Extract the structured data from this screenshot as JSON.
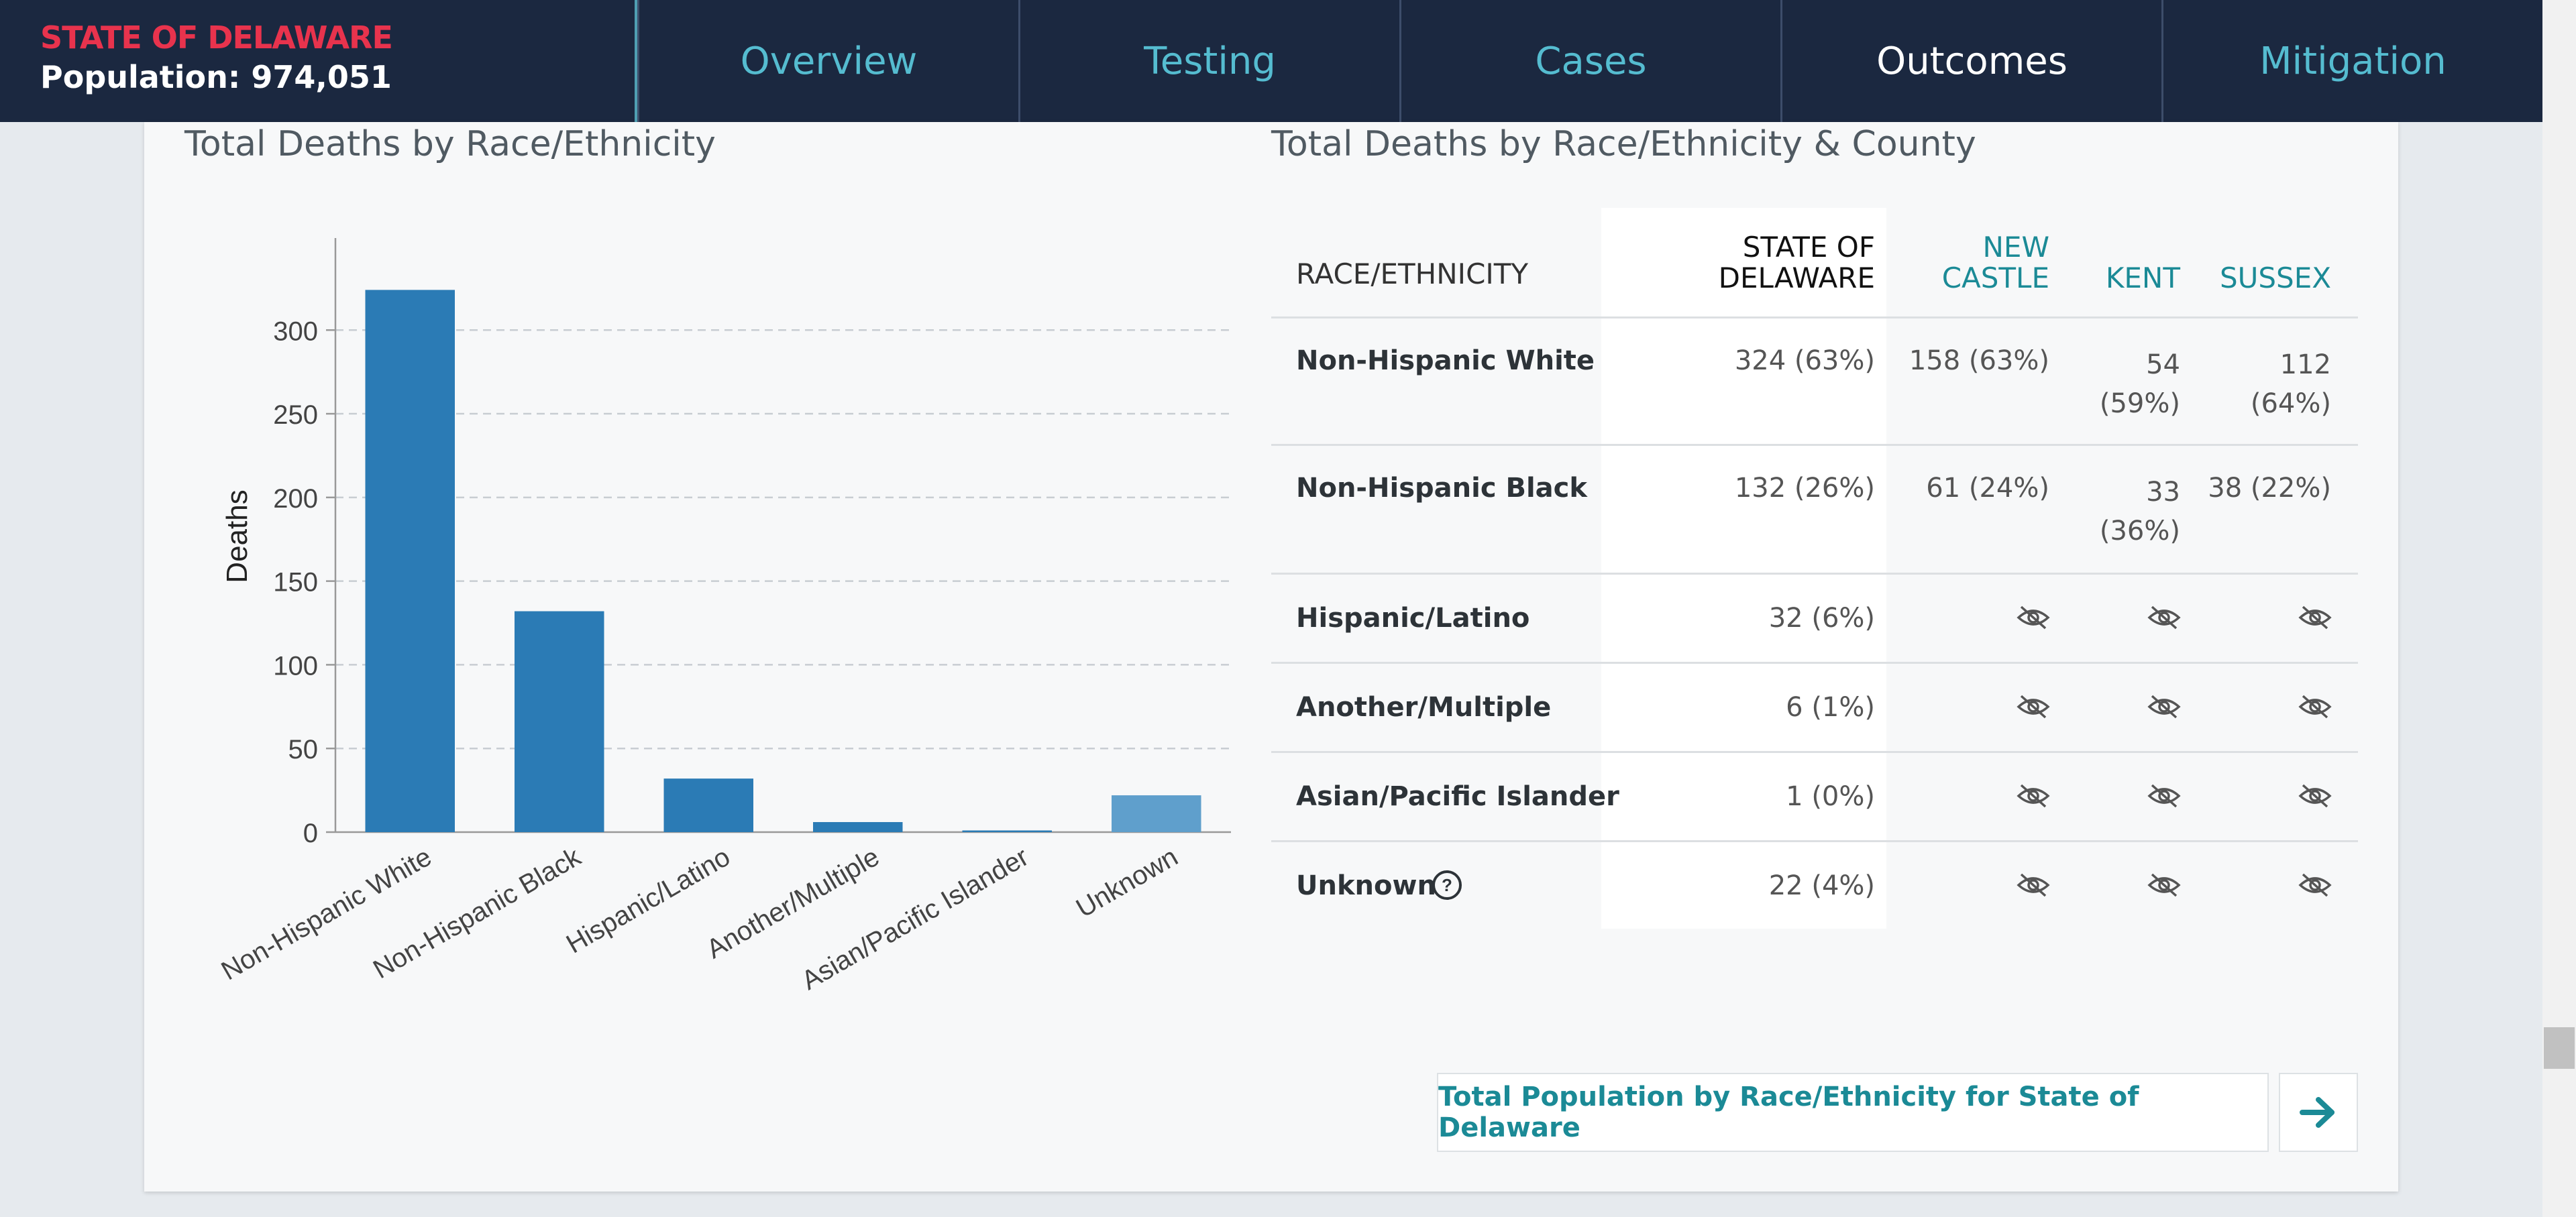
{
  "header": {
    "state": "STATE OF DELAWARE",
    "population": "Population: 974,051",
    "tabs": [
      {
        "label": "Overview",
        "active": false
      },
      {
        "label": "Testing",
        "active": false
      },
      {
        "label": "Cases",
        "active": false
      },
      {
        "label": "Outcomes",
        "active": true
      },
      {
        "label": "Mitigation",
        "active": false
      }
    ]
  },
  "left_title": "Total Deaths by Race/Ethnicity",
  "right_title": "Total Deaths by Race/Ethnicity & County",
  "chart_data": {
    "type": "bar",
    "title": "Total Deaths by Race/Ethnicity",
    "ylabel": "Deaths",
    "xlabel": "",
    "categories": [
      "Non-Hispanic White",
      "Non-Hispanic Black",
      "Hispanic/Latino",
      "Another/Multiple",
      "Asian/Pacific Islander",
      "Unknown"
    ],
    "values": [
      324,
      132,
      32,
      6,
      1,
      22
    ],
    "yticks": [
      0,
      50,
      100,
      150,
      200,
      250,
      300
    ],
    "ylim": [
      0,
      355
    ],
    "grid": "horizontal dashed",
    "colors": [
      "#2b7bb5",
      "#2b7bb5",
      "#2b7bb5",
      "#2b7bb5",
      "#2b7bb5",
      "#5f9fcc"
    ]
  },
  "table": {
    "headers": {
      "race": "RACE/ETHNICITY",
      "state_l1": "STATE OF",
      "state_l2": "DELAWARE",
      "nc_l1": "NEW",
      "nc_l2": "CASTLE",
      "kent": "KENT",
      "sussex": "SUSSEX"
    },
    "rows": [
      {
        "race": "Non-Hispanic White",
        "state": "324 (63%)",
        "nc": "158 (63%)",
        "kent_l1": "54",
        "kent_l2": "(59%)",
        "sussex_l1": "112",
        "sussex_l2": "(64%)"
      },
      {
        "race": "Non-Hispanic Black",
        "state": "132 (26%)",
        "nc": "61 (24%)",
        "kent_l1": "33",
        "kent_l2": "(36%)",
        "sussex_l1": "38 (22%)",
        "sussex_l2": ""
      },
      {
        "race": "Hispanic/Latino",
        "state": "32 (6%)",
        "hidden": true
      },
      {
        "race": "Another/Multiple",
        "state": "6 (1%)",
        "hidden": true
      },
      {
        "race": "Asian/Pacific Islander",
        "state": "1 (0%)",
        "hidden": true
      },
      {
        "race": "Unknown",
        "state": "22 (4%)",
        "hidden": true,
        "info_icon": "question-circle-icon"
      }
    ],
    "hidden_icon": "eye-slash-icon"
  },
  "link_button": {
    "label": "Total Population by Race/Ethnicity for State of Delaware",
    "icon": "arrow-right-icon"
  },
  "colors": {
    "nav_bg": "#1b2840",
    "state_red": "#e8334d",
    "tab_blue": "#55bcd0",
    "teal": "#1b8a96",
    "bar": "#2b7bb5",
    "bar_unknown": "#5f9fcc"
  }
}
